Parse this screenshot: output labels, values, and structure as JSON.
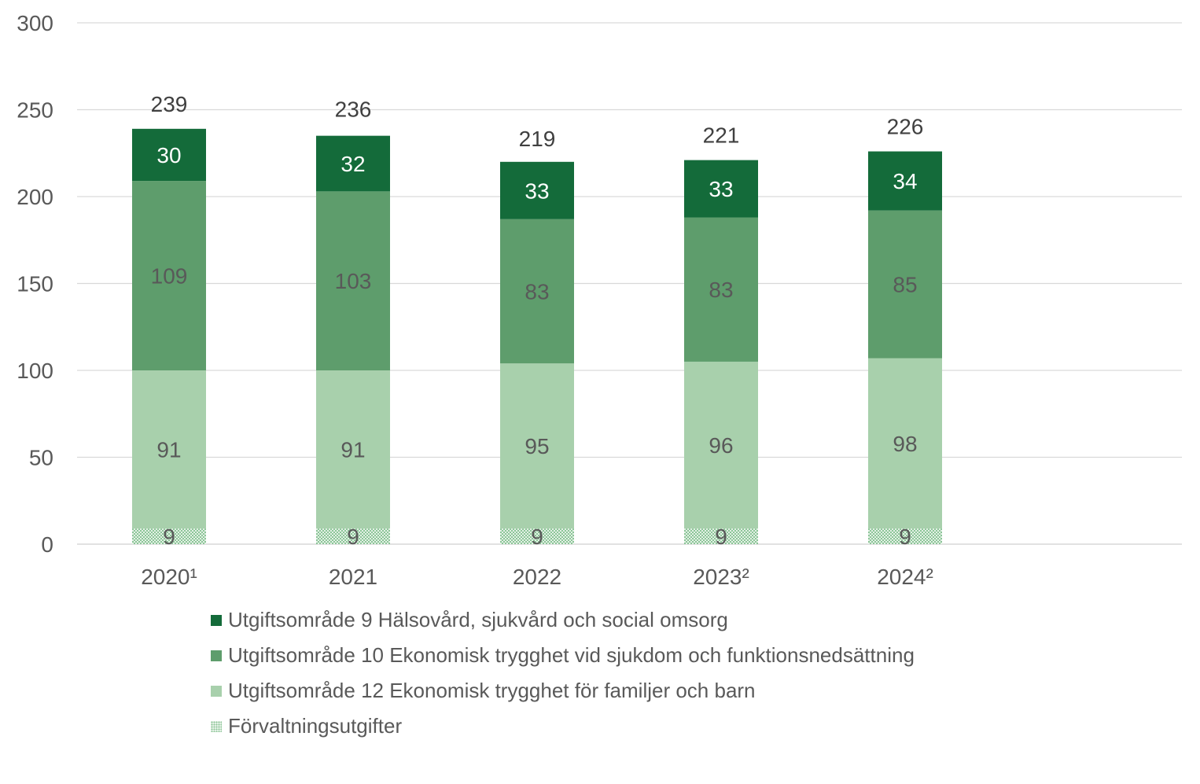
{
  "chart_data": {
    "type": "bar",
    "stacked": true,
    "categories": [
      "2020¹",
      "2021",
      "2022",
      "2023²",
      "2024²"
    ],
    "series": [
      {
        "name": "Förvaltningsutgifter",
        "values": [
          9,
          9,
          9,
          9,
          9
        ],
        "color": "#a8d5b0",
        "pattern": "dotted"
      },
      {
        "name": "Utgiftsområde 12 Ekonomisk trygghet för familjer och barn",
        "values": [
          91,
          91,
          95,
          96,
          98
        ],
        "color": "#a8d0ac"
      },
      {
        "name": "Utgiftsområde 10 Ekonomisk trygghet vid sjukdom och funktionsnedsättning",
        "values": [
          109,
          103,
          83,
          83,
          85
        ],
        "color": "#5e9d6c"
      },
      {
        "name": "Utgiftsområde 9 Hälsovård, sjukvård och social omsorg",
        "values": [
          30,
          32,
          33,
          33,
          34
        ],
        "color": "#146b3a"
      }
    ],
    "totals": [
      239,
      236,
      219,
      221,
      226
    ],
    "yticks": [
      0,
      50,
      100,
      150,
      200,
      250,
      300
    ],
    "ylim": [
      0,
      300
    ],
    "grid": true,
    "legend_position": "bottom",
    "label_colors": {
      "light": "#ffffff",
      "dark": "#595959"
    }
  }
}
